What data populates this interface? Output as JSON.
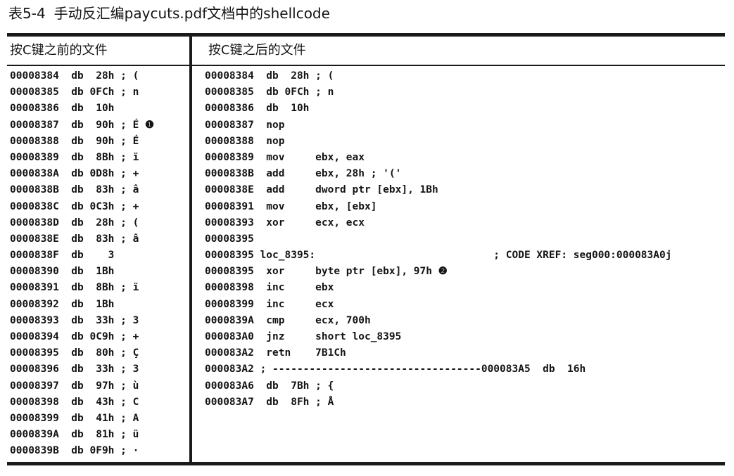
{
  "caption": {
    "number": "表5-4",
    "title": "手动反汇编paycuts.pdf文档中的shellcode"
  },
  "table": {
    "left_header": "按C键之前的文件",
    "right_header": "按C键之后的文件",
    "left_lines": [
      "00008384  db  28h ; (",
      "00008385  db 0FCh ; n",
      "00008386  db  10h",
      "00008387  db  90h ; É ❶",
      "00008388  db  90h ; É",
      "00008389  db  8Bh ; ï",
      "0000838A  db 0D8h ; +",
      "0000838B  db  83h ; â",
      "0000838C  db 0C3h ; +",
      "0000838D  db  28h ; (",
      "0000838E  db  83h ; â",
      "0000838F  db    3",
      "00008390  db  1Bh",
      "00008391  db  8Bh ; ï",
      "00008392  db  1Bh",
      "00008393  db  33h ; 3",
      "00008394  db 0C9h ; +",
      "00008395  db  80h ; Ç",
      "00008396  db  33h ; 3",
      "00008397  db  97h ; ù",
      "00008398  db  43h ; C",
      "00008399  db  41h ; A",
      "0000839A  db  81h ; ü",
      "0000839B  db 0F9h ; ·"
    ],
    "right_lines": [
      "00008384  db  28h ; (",
      "00008385  db 0FCh ; n",
      "00008386  db  10h",
      "00008387  nop",
      "00008388  nop",
      "00008389  mov     ebx, eax",
      "0000838B  add     ebx, 28h ; '('",
      "0000838E  add     dword ptr [ebx], 1Bh",
      "00008391  mov     ebx, [ebx]",
      "00008393  xor     ecx, ecx",
      "00008395",
      "00008395 loc_8395:                             ; CODE XREF: seg000:000083A0j",
      "00008395  xor     byte ptr [ebx], 97h ❷",
      "00008398  inc     ebx",
      "00008399  inc     ecx",
      "0000839A  cmp     ecx, 700h",
      "000083A0  jnz     short loc_8395",
      "000083A2  retn    7B1Ch",
      "000083A2 ; ----------------------------------000083A5  db  16h",
      "000083A6  db  7Bh ; {",
      "000083A7  db  8Fh ; Å"
    ]
  }
}
